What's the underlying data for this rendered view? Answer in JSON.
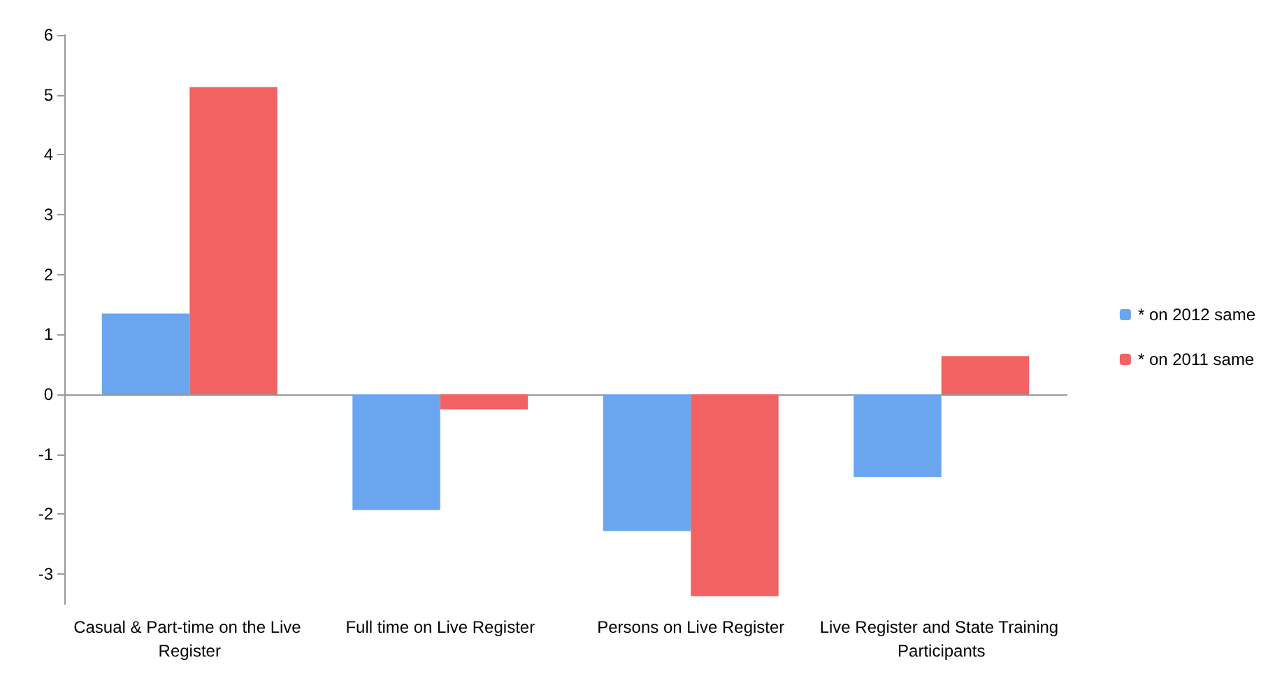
{
  "chart_data": {
    "type": "bar",
    "categories": [
      "Casual & Part-time on the Live Register",
      "Full time on Live Register",
      "Persons on Live Register",
      "Live Register and State Training Participants"
    ],
    "series": [
      {
        "name": "* on 2012 same",
        "color": "#6aa6f0",
        "values": [
          1.35,
          -1.93,
          -2.28,
          -1.38
        ]
      },
      {
        "name": "* on 2011 same",
        "color": "#f26262",
        "values": [
          5.13,
          -0.25,
          -3.37,
          0.64
        ]
      }
    ],
    "ylim": [
      -3.5,
      6
    ],
    "yticks": [
      -3,
      -2,
      -1,
      0,
      1,
      2,
      3,
      4,
      5,
      6
    ],
    "legend": "right"
  }
}
